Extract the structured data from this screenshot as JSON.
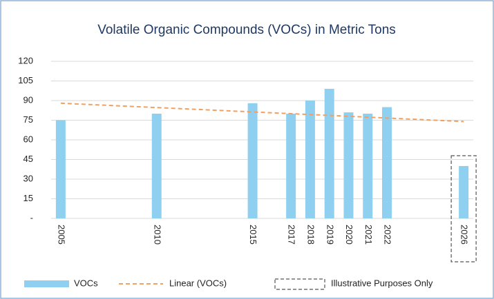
{
  "chart_data": {
    "type": "bar",
    "title": "Volatile Organic Compounds (VOCs) in Metric Tons",
    "x": [
      2005,
      2010,
      2015,
      2017,
      2018,
      2019,
      2020,
      2021,
      2022,
      2026
    ],
    "xlim": [
      2004.5,
      2026.5
    ],
    "series": [
      {
        "name": "VOCs",
        "color": "#8fd0f0",
        "values": [
          75,
          80,
          88,
          80,
          90,
          99,
          81,
          80,
          85,
          40
        ]
      },
      {
        "name": "Linear (VOCs)",
        "color": "#f0a060",
        "style": "dashed",
        "x": [
          2005,
          2026
        ],
        "values": [
          88,
          74
        ]
      }
    ],
    "ylim": [
      0,
      120
    ],
    "yticks": [
      {
        "value": 0,
        "label": "-"
      },
      15,
      30,
      45,
      60,
      75,
      90,
      105,
      120
    ],
    "grid": true,
    "legend": "bottom",
    "annotation": {
      "text": "Illustrative Purposes Only",
      "x": 2026
    }
  }
}
